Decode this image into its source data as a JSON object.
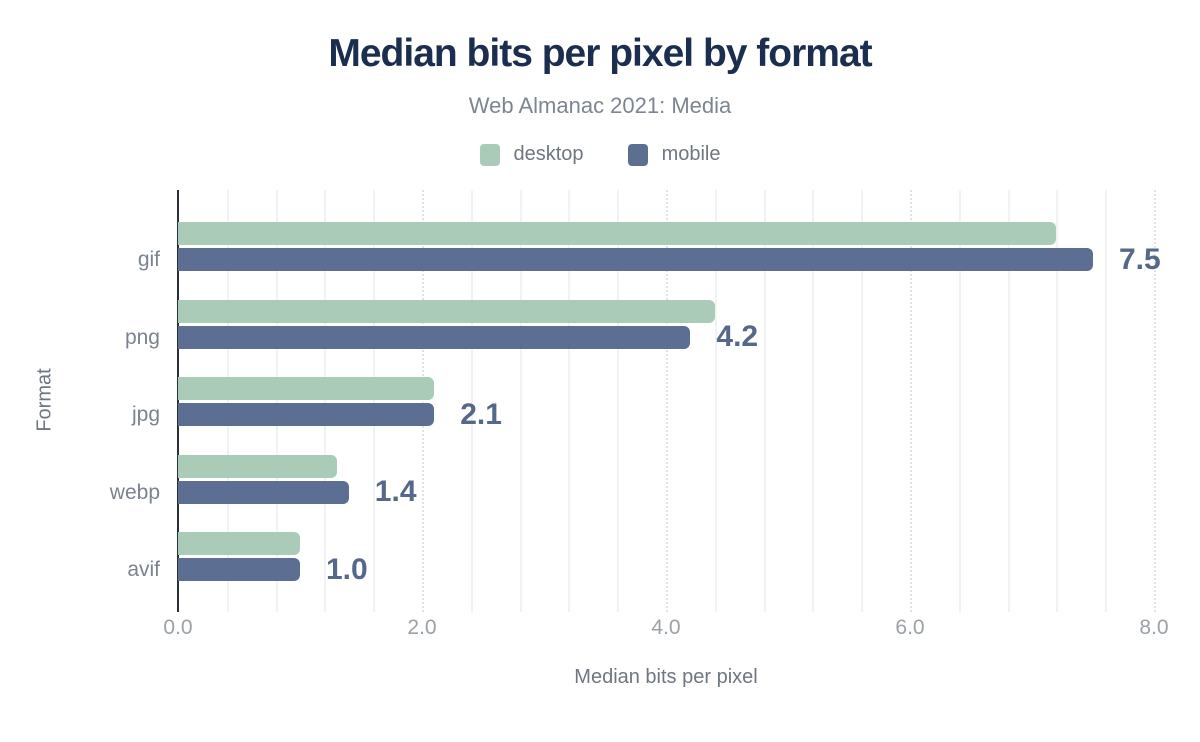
{
  "chart_data": {
    "type": "bar",
    "orientation": "horizontal",
    "title": "Median bits per pixel by format",
    "subtitle": "Web Almanac 2021: Media",
    "xlabel": "Median bits per pixel",
    "ylabel": "Format",
    "categories": [
      "gif",
      "png",
      "jpg",
      "webp",
      "avif"
    ],
    "series": [
      {
        "name": "desktop",
        "color": "#a9cbb7",
        "values": [
          7.2,
          4.4,
          2.1,
          1.3,
          1.0
        ]
      },
      {
        "name": "mobile",
        "color": "#5c6e91",
        "values": [
          7.5,
          4.2,
          2.1,
          1.4,
          1.0
        ]
      }
    ],
    "value_labels": {
      "labeled_series": "mobile",
      "texts": [
        "7.5",
        "4.2",
        "2.1",
        "1.4",
        "1.0"
      ]
    },
    "x_ticks": [
      "0.0",
      "2.0",
      "4.0",
      "6.0",
      "8.0"
    ],
    "x_tick_values": [
      0,
      2,
      4,
      6,
      8
    ],
    "xlim": [
      0,
      8
    ],
    "grid": {
      "minor_step": 0.4,
      "major_step": 2.0,
      "legend_position": "top"
    },
    "value_label_color": "#56688a",
    "title_color": "#1b2e4f"
  }
}
